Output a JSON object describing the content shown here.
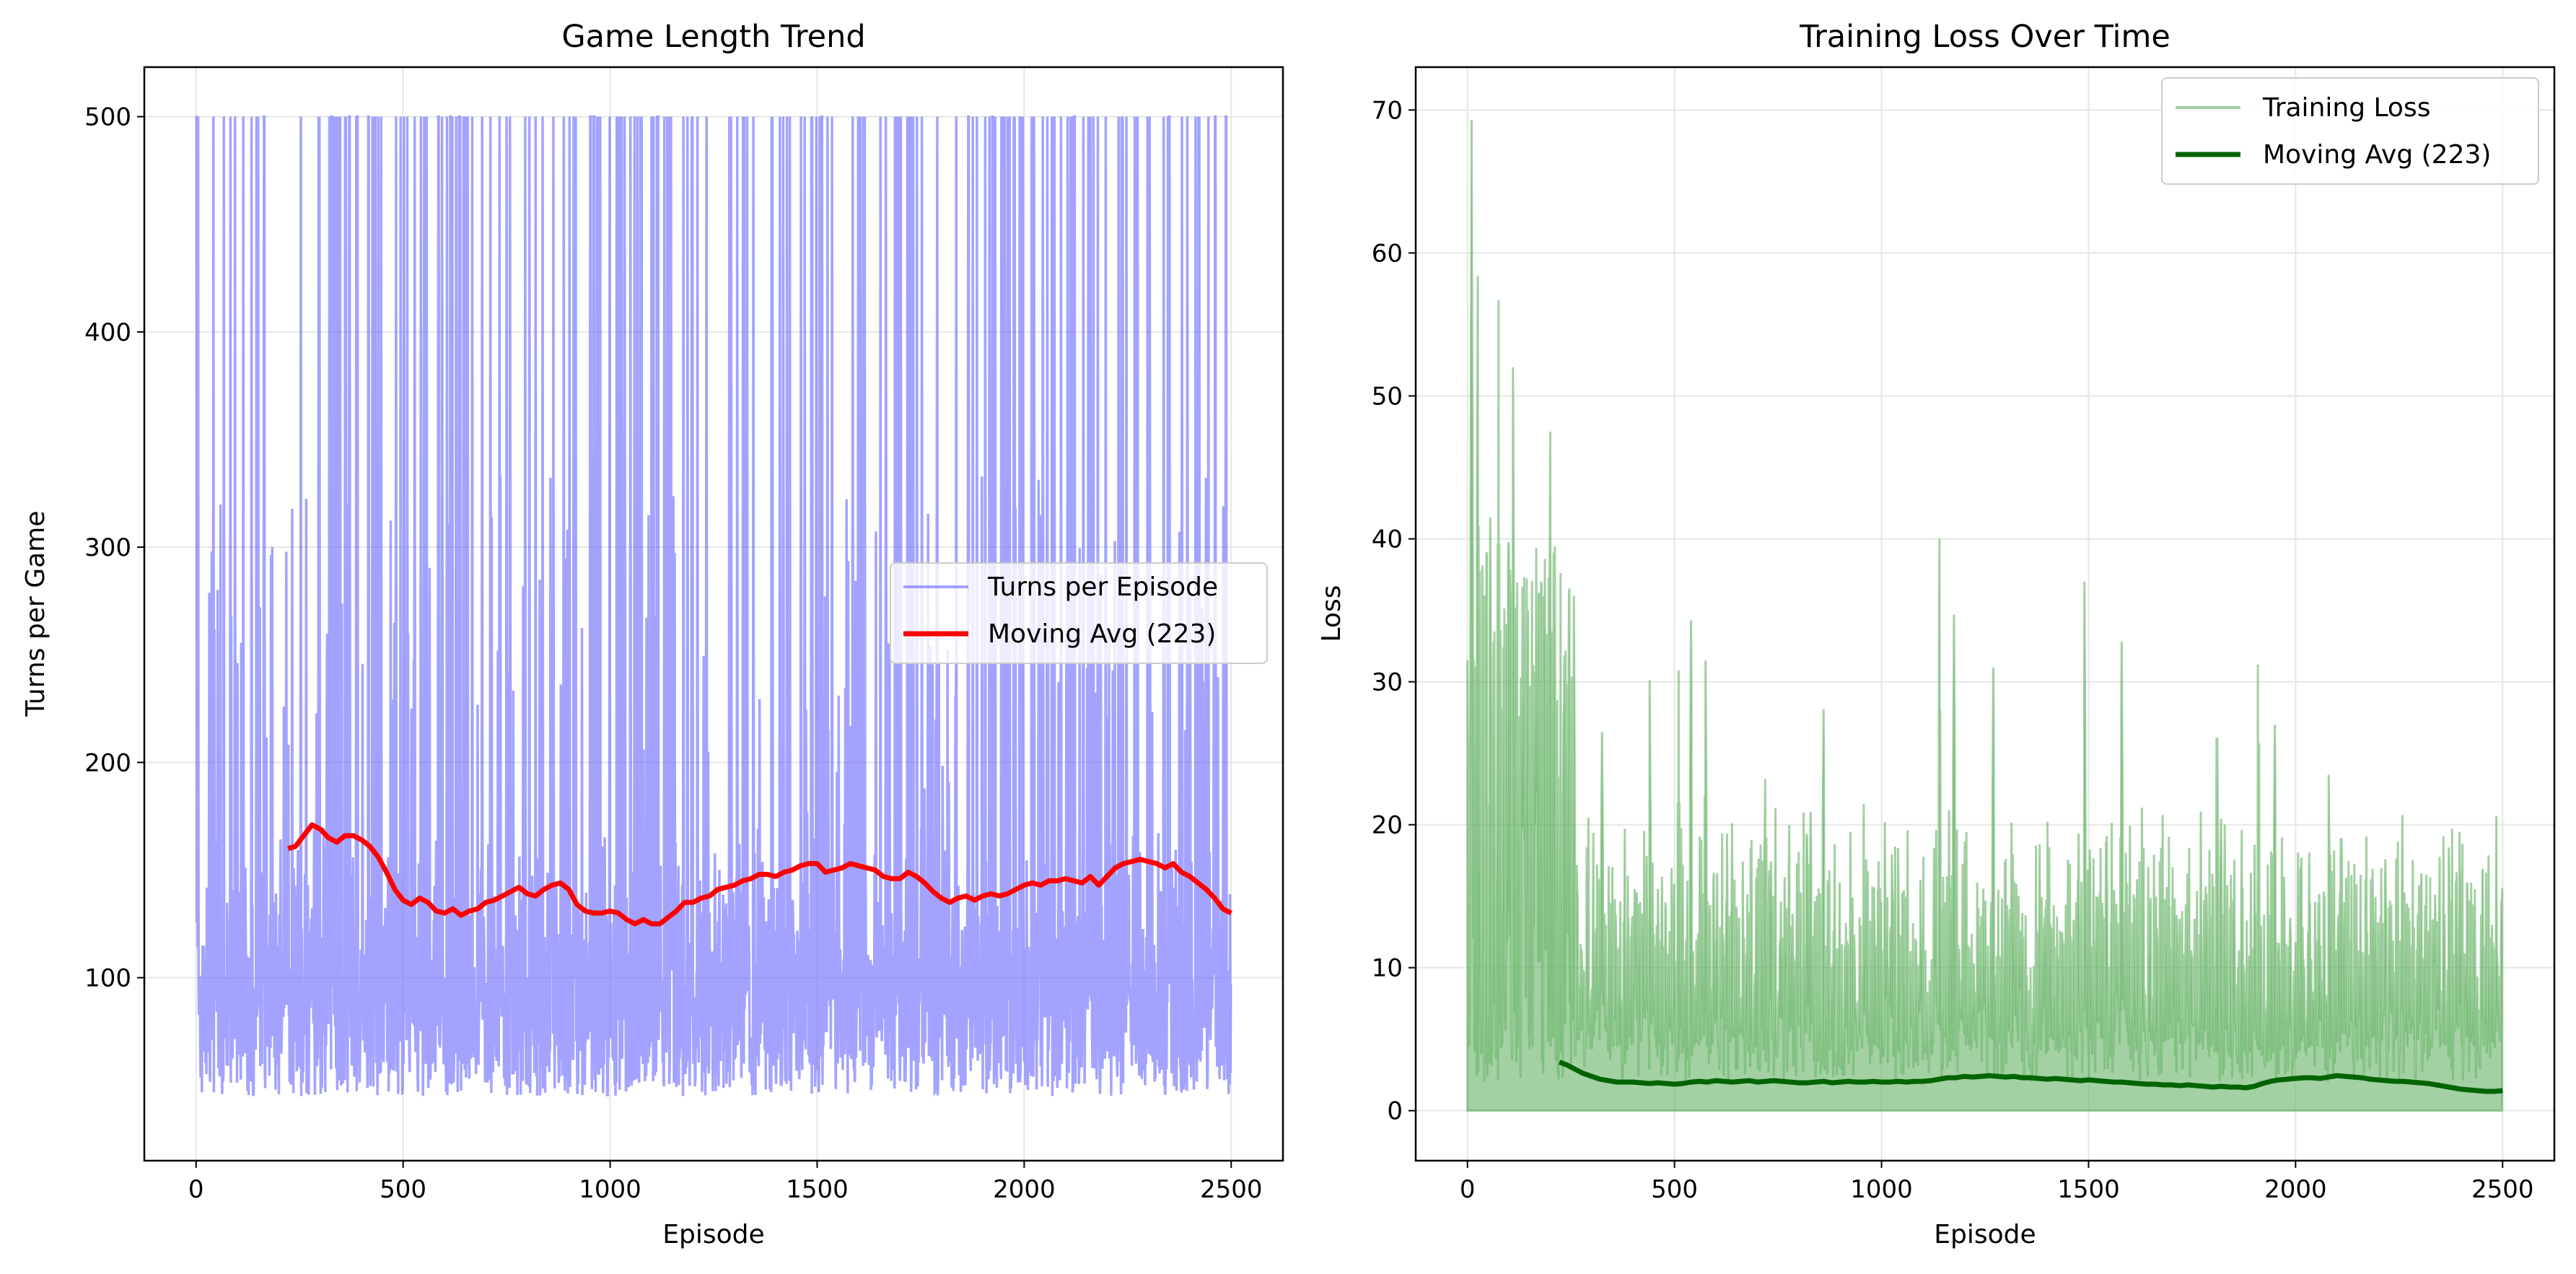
{
  "colors": {
    "turns_line": "#6666ff",
    "turns_avg": "#ff0000",
    "loss_fill": "#66b266",
    "loss_avg": "#006400",
    "grid": "#e6e6e6"
  },
  "chart_data": [
    {
      "type": "line",
      "title": "Game Length Trend",
      "xlabel": "Episode",
      "ylabel": "Turns per Game",
      "xlim": [
        -125,
        2625
      ],
      "ylim": [
        15,
        523
      ],
      "xticks": [
        0,
        500,
        1000,
        1500,
        2000,
        2500
      ],
      "yticks": [
        100,
        200,
        300,
        400,
        500
      ],
      "xtick_labels": [
        "0",
        "500",
        "1000",
        "1500",
        "2000",
        "2500"
      ],
      "ytick_labels": [
        "100",
        "200",
        "300",
        "400",
        "500"
      ],
      "grid": true,
      "legend_position": "center-right",
      "series": [
        {
          "name": "Turns per Episode",
          "style": "thin line, blue, alpha 0.6",
          "episodes": 2500,
          "min": 38,
          "max": 500,
          "typical_range": [
            45,
            180
          ],
          "peaks_at_500_share": 0.08
        },
        {
          "name": "Moving Avg (223)",
          "style": "thick line, red",
          "x": [
            222,
            240,
            260,
            280,
            300,
            320,
            340,
            360,
            380,
            400,
            420,
            440,
            460,
            480,
            500,
            520,
            540,
            560,
            580,
            600,
            620,
            640,
            660,
            680,
            700,
            720,
            740,
            760,
            780,
            800,
            820,
            840,
            860,
            880,
            900,
            920,
            940,
            960,
            980,
            1000,
            1020,
            1040,
            1060,
            1080,
            1100,
            1120,
            1140,
            1160,
            1180,
            1200,
            1220,
            1240,
            1260,
            1280,
            1300,
            1320,
            1340,
            1360,
            1380,
            1400,
            1420,
            1440,
            1460,
            1480,
            1500,
            1520,
            1540,
            1560,
            1580,
            1600,
            1620,
            1640,
            1660,
            1680,
            1700,
            1720,
            1740,
            1760,
            1780,
            1800,
            1820,
            1840,
            1860,
            1880,
            1900,
            1920,
            1940,
            1960,
            1980,
            2000,
            2020,
            2040,
            2060,
            2080,
            2100,
            2120,
            2140,
            2160,
            2180,
            2200,
            2220,
            2240,
            2260,
            2280,
            2300,
            2320,
            2340,
            2360,
            2380,
            2400,
            2420,
            2440,
            2460,
            2480,
            2500
          ],
          "values": [
            160,
            161,
            166,
            171,
            169,
            165,
            163,
            166,
            166,
            164,
            161,
            156,
            149,
            141,
            136,
            134,
            137,
            135,
            131,
            130,
            132,
            129,
            131,
            132,
            135,
            136,
            138,
            140,
            142,
            139,
            138,
            141,
            143,
            144,
            141,
            134,
            131,
            130,
            130,
            131,
            130,
            127,
            125,
            127,
            125,
            125,
            128,
            131,
            135,
            135,
            137,
            138,
            141,
            142,
            143,
            145,
            146,
            148,
            148,
            147,
            149,
            150,
            152,
            153,
            153,
            149,
            150,
            151,
            153,
            152,
            151,
            150,
            147,
            146,
            146,
            149,
            147,
            144,
            140,
            137,
            135,
            137,
            138,
            136,
            138,
            139,
            138,
            139,
            141,
            143,
            144,
            143,
            145,
            145,
            146,
            145,
            144,
            147,
            143,
            147,
            151,
            153,
            154,
            155,
            154,
            153,
            151,
            153,
            149,
            147,
            144,
            141,
            137,
            132,
            130
          ]
        }
      ]
    },
    {
      "type": "area",
      "title": "Training Loss Over Time",
      "xlabel": "Episode",
      "ylabel": "Loss",
      "xlim": [
        -125,
        2625
      ],
      "ylim": [
        -3.5,
        73
      ],
      "xticks": [
        0,
        500,
        1000,
        1500,
        2000,
        2500
      ],
      "yticks": [
        0,
        10,
        20,
        30,
        40,
        50,
        60,
        70
      ],
      "xtick_labels": [
        "0",
        "500",
        "1000",
        "1500",
        "2000",
        "2500"
      ],
      "ytick_labels": [
        "0",
        "10",
        "20",
        "30",
        "40",
        "50",
        "60",
        "70"
      ],
      "grid": true,
      "legend_position": "top-right",
      "series": [
        {
          "name": "Training Loss",
          "style": "filled spikes, green, alpha 0.6",
          "episodes": 2500,
          "min": 0,
          "max": 69.3,
          "peaks": [
            [
              0,
              31.5
            ],
            [
              10,
              69.3
            ],
            [
              25,
              58.4
            ],
            [
              40,
              51.5
            ],
            [
              55,
              41.5
            ],
            [
              75,
              56.7
            ],
            [
              110,
              52.0
            ],
            [
              140,
              24.7
            ],
            [
              185,
              32.1
            ],
            [
              200,
              47.5
            ],
            [
              325,
              26.5
            ],
            [
              440,
              30.1
            ],
            [
              510,
              30.8
            ],
            [
              540,
              34.3
            ],
            [
              575,
              31.5
            ],
            [
              720,
              27.3
            ],
            [
              810,
              29.8
            ],
            [
              860,
              28.1
            ],
            [
              1140,
              40.0
            ],
            [
              1175,
              34.7
            ],
            [
              1270,
              31.0
            ],
            [
              1490,
              37.0
            ],
            [
              1580,
              32.8
            ],
            [
              1810,
              30.7
            ],
            [
              1910,
              36.7
            ],
            [
              1950,
              27.0
            ],
            [
              2080,
              23.5
            ],
            [
              2450,
              19.6
            ],
            [
              2500,
              18.3
            ]
          ]
        },
        {
          "name": "Moving Avg (223)",
          "style": "thick line, dark green",
          "x": [
            222,
            240,
            260,
            280,
            300,
            320,
            340,
            360,
            380,
            400,
            420,
            440,
            460,
            480,
            500,
            520,
            540,
            560,
            580,
            600,
            620,
            640,
            660,
            680,
            700,
            720,
            740,
            760,
            780,
            800,
            820,
            840,
            860,
            880,
            900,
            920,
            940,
            960,
            980,
            1000,
            1020,
            1040,
            1060,
            1080,
            1100,
            1120,
            1140,
            1160,
            1180,
            1200,
            1220,
            1240,
            1260,
            1280,
            1300,
            1320,
            1340,
            1360,
            1380,
            1400,
            1420,
            1440,
            1460,
            1480,
            1500,
            1520,
            1540,
            1560,
            1580,
            1600,
            1620,
            1640,
            1660,
            1680,
            1700,
            1720,
            1740,
            1760,
            1780,
            1800,
            1820,
            1840,
            1860,
            1880,
            1900,
            1920,
            1940,
            1960,
            1980,
            2000,
            2020,
            2040,
            2060,
            2080,
            2100,
            2120,
            2140,
            2160,
            2180,
            2200,
            2220,
            2240,
            2260,
            2280,
            2300,
            2320,
            2340,
            2360,
            2380,
            2400,
            2420,
            2440,
            2460,
            2480,
            2500
          ],
          "values": [
            3.4,
            3.2,
            2.9,
            2.6,
            2.4,
            2.2,
            2.1,
            2.0,
            2.0,
            2.0,
            1.95,
            1.9,
            1.95,
            1.9,
            1.85,
            1.9,
            2.0,
            2.05,
            2.0,
            2.1,
            2.05,
            2.0,
            2.05,
            2.1,
            2.0,
            2.05,
            2.1,
            2.05,
            2.0,
            1.95,
            1.95,
            2.0,
            2.05,
            1.95,
            2.0,
            2.05,
            2.0,
            2.0,
            2.05,
            2.0,
            2.0,
            2.05,
            2.0,
            2.05,
            2.05,
            2.1,
            2.2,
            2.3,
            2.3,
            2.4,
            2.35,
            2.4,
            2.45,
            2.4,
            2.35,
            2.4,
            2.3,
            2.3,
            2.25,
            2.2,
            2.25,
            2.2,
            2.15,
            2.1,
            2.15,
            2.1,
            2.05,
            2.0,
            2.0,
            1.95,
            1.9,
            1.85,
            1.85,
            1.8,
            1.8,
            1.75,
            1.8,
            1.75,
            1.7,
            1.65,
            1.7,
            1.65,
            1.65,
            1.6,
            1.7,
            1.9,
            2.05,
            2.15,
            2.2,
            2.25,
            2.3,
            2.3,
            2.25,
            2.35,
            2.45,
            2.4,
            2.35,
            2.3,
            2.2,
            2.15,
            2.1,
            2.05,
            2.05,
            2.0,
            1.95,
            1.9,
            1.8,
            1.7,
            1.6,
            1.5,
            1.45,
            1.4,
            1.35,
            1.35,
            1.4
          ]
        }
      ]
    }
  ]
}
